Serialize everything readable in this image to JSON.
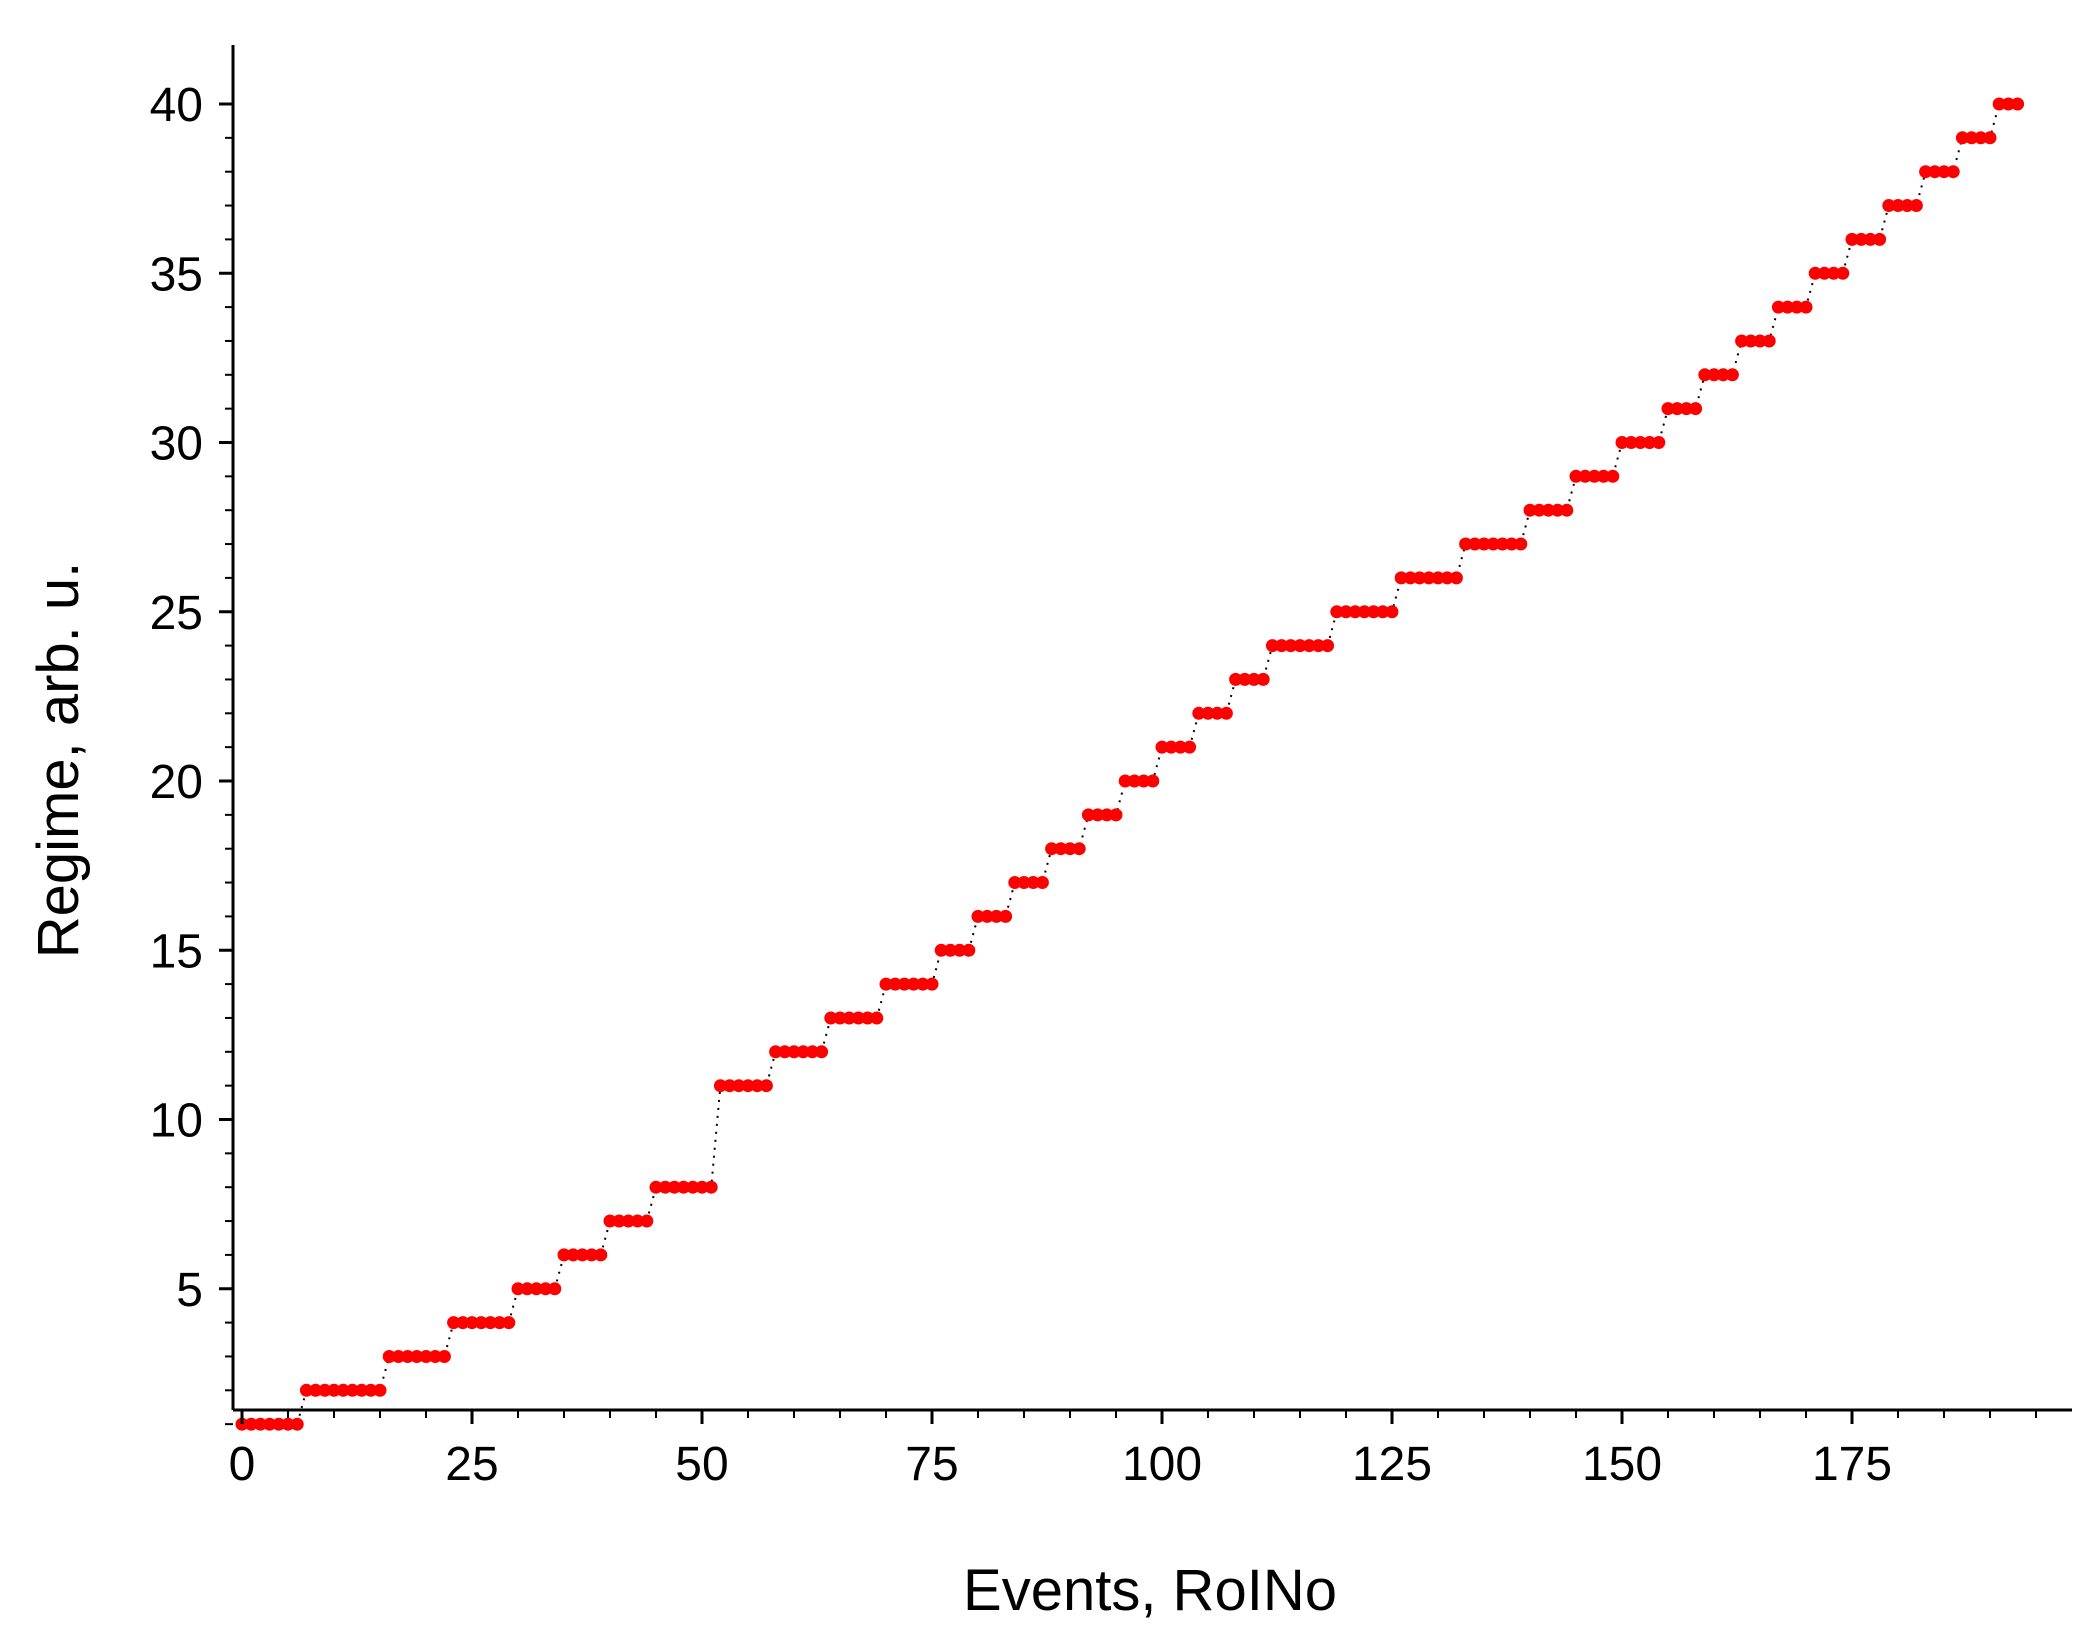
{
  "chart_data": {
    "type": "scatter",
    "title": "",
    "xlabel": "Events, RoINo",
    "ylabel": "Regime, arb. u.",
    "xlim": [
      -1,
      200
    ],
    "ylim": [
      0.6,
      41
    ],
    "xticks": [
      0,
      25,
      50,
      75,
      100,
      125,
      150,
      175
    ],
    "yticks": [
      5,
      10,
      15,
      20,
      25,
      30,
      35,
      40
    ],
    "x_minor_step": 5,
    "y_minor_step": 1,
    "grid": false,
    "marker_color": "#ff0000",
    "connector": "dotted",
    "series": [
      {
        "steps": [
          {
            "regime": 1,
            "x_start": 0,
            "x_end": 6
          },
          {
            "regime": 2,
            "x_start": 7,
            "x_end": 15
          },
          {
            "regime": 3,
            "x_start": 16,
            "x_end": 22
          },
          {
            "regime": 4,
            "x_start": 23,
            "x_end": 29
          },
          {
            "regime": 5,
            "x_start": 30,
            "x_end": 34
          },
          {
            "regime": 6,
            "x_start": 35,
            "x_end": 39
          },
          {
            "regime": 7,
            "x_start": 40,
            "x_end": 44
          },
          {
            "regime": 8,
            "x_start": 45,
            "x_end": 51
          },
          {
            "regime": 11,
            "x_start": 52,
            "x_end": 57
          },
          {
            "regime": 12,
            "x_start": 58,
            "x_end": 63
          },
          {
            "regime": 13,
            "x_start": 64,
            "x_end": 69
          },
          {
            "regime": 14,
            "x_start": 70,
            "x_end": 75
          },
          {
            "regime": 15,
            "x_start": 76,
            "x_end": 79
          },
          {
            "regime": 16,
            "x_start": 80,
            "x_end": 83
          },
          {
            "regime": 17,
            "x_start": 84,
            "x_end": 87
          },
          {
            "regime": 18,
            "x_start": 88,
            "x_end": 91
          },
          {
            "regime": 19,
            "x_start": 92,
            "x_end": 95
          },
          {
            "regime": 20,
            "x_start": 96,
            "x_end": 99
          },
          {
            "regime": 21,
            "x_start": 100,
            "x_end": 103
          },
          {
            "regime": 22,
            "x_start": 104,
            "x_end": 107
          },
          {
            "regime": 23,
            "x_start": 108,
            "x_end": 111
          },
          {
            "regime": 24,
            "x_start": 112,
            "x_end": 118
          },
          {
            "regime": 25,
            "x_start": 119,
            "x_end": 125
          },
          {
            "regime": 26,
            "x_start": 126,
            "x_end": 132
          },
          {
            "regime": 27,
            "x_start": 133,
            "x_end": 139
          },
          {
            "regime": 28,
            "x_start": 140,
            "x_end": 144
          },
          {
            "regime": 29,
            "x_start": 145,
            "x_end": 149
          },
          {
            "regime": 30,
            "x_start": 150,
            "x_end": 154
          },
          {
            "regime": 31,
            "x_start": 155,
            "x_end": 158
          },
          {
            "regime": 32,
            "x_start": 159,
            "x_end": 162
          },
          {
            "regime": 33,
            "x_start": 163,
            "x_end": 166
          },
          {
            "regime": 34,
            "x_start": 167,
            "x_end": 170
          },
          {
            "regime": 35,
            "x_start": 171,
            "x_end": 174
          },
          {
            "regime": 36,
            "x_start": 175,
            "x_end": 178
          },
          {
            "regime": 37,
            "x_start": 179,
            "x_end": 182
          },
          {
            "regime": 38,
            "x_start": 183,
            "x_end": 186
          },
          {
            "regime": 39,
            "x_start": 187,
            "x_end": 190
          },
          {
            "regime": 40,
            "x_start": 191,
            "x_end": 193
          }
        ]
      }
    ]
  }
}
